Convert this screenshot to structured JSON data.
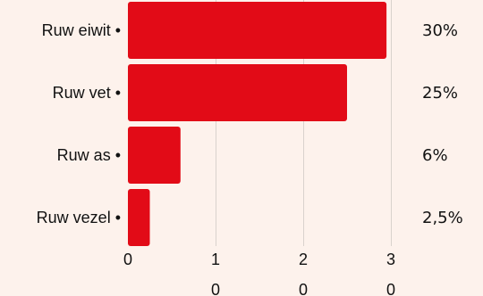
{
  "chart_data": {
    "type": "bar",
    "orientation": "horizontal",
    "categories": [
      "Ruw eiwit •",
      "Ruw vet •",
      "Ruw as •",
      "Ruw vezel •"
    ],
    "values": [
      2.95,
      2.5,
      0.6,
      0.25
    ],
    "value_labels": [
      "30%",
      "25%",
      "6%",
      "2,5%"
    ],
    "x_ticks": [
      {
        "value": 0,
        "line1": "0",
        "line2": ""
      },
      {
        "value": 1,
        "line1": "1",
        "line2": "0"
      },
      {
        "value": 2,
        "line1": "2",
        "line2": "0"
      },
      {
        "value": 3,
        "line1": "3",
        "line2": "0"
      }
    ],
    "xlim": [
      0,
      3
    ],
    "grid": true,
    "title": "",
    "xlabel": "",
    "ylabel": "",
    "bar_color": "#e20b17",
    "background_color": "#fdf2ec"
  }
}
